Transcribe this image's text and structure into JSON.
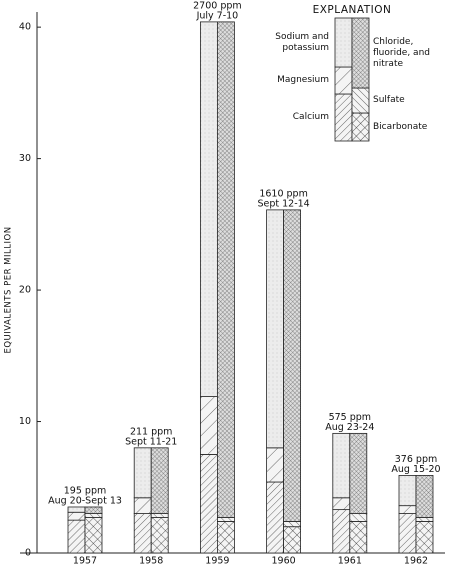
{
  "chart_data": {
    "type": "bar",
    "ylabel": "EQUIVALENTS PER MILLION",
    "categories": [
      "1957",
      "1958",
      "1959",
      "1960",
      "1961",
      "1962"
    ],
    "ylim": [
      0,
      41
    ],
    "yticks": [
      0,
      10,
      20,
      30,
      40
    ],
    "annotations": [
      {
        "ppm": "195 ppm",
        "dates": "Aug 20-Sept 13"
      },
      {
        "ppm": "211 ppm",
        "dates": "Sept 11-21"
      },
      {
        "ppm": "2700 ppm",
        "dates": "July 7-10"
      },
      {
        "ppm": "1610 ppm",
        "dates": "Sept 12-14"
      },
      {
        "ppm": "575 ppm",
        "dates": "Aug 23-24"
      },
      {
        "ppm": "376 ppm",
        "dates": "Aug 15-20"
      }
    ],
    "legend_title": "EXPLANATION",
    "stacks": [
      {
        "series": [
          {
            "name": "Calcium",
            "pattern": "hatch",
            "values": [
              2.5,
              3.0,
              7.5,
              5.4,
              3.3,
              3.0
            ]
          },
          {
            "name": "Magnesium",
            "pattern": "wide-hatch",
            "values": [
              0.6,
              1.2,
              4.4,
              2.6,
              0.9,
              0.6
            ]
          },
          {
            "name": "Sodium and potassium",
            "pattern": "stipple",
            "values": [
              0.4,
              3.8,
              28.5,
              18.1,
              4.9,
              2.3
            ]
          }
        ]
      },
      {
        "series": [
          {
            "name": "Bicarbonate",
            "pattern": "crosshatch",
            "values": [
              2.7,
              2.7,
              2.4,
              2.0,
              2.4,
              2.4
            ]
          },
          {
            "name": "Sulfate",
            "pattern": "back-hatch",
            "values": [
              0.3,
              0.3,
              0.3,
              0.4,
              0.6,
              0.3
            ]
          },
          {
            "name": "Chloride, fluoride, and nitrate",
            "pattern": "fine-crosshatch",
            "values": [
              0.5,
              5.0,
              37.7,
              23.7,
              6.1,
              3.2
            ]
          }
        ]
      }
    ]
  }
}
